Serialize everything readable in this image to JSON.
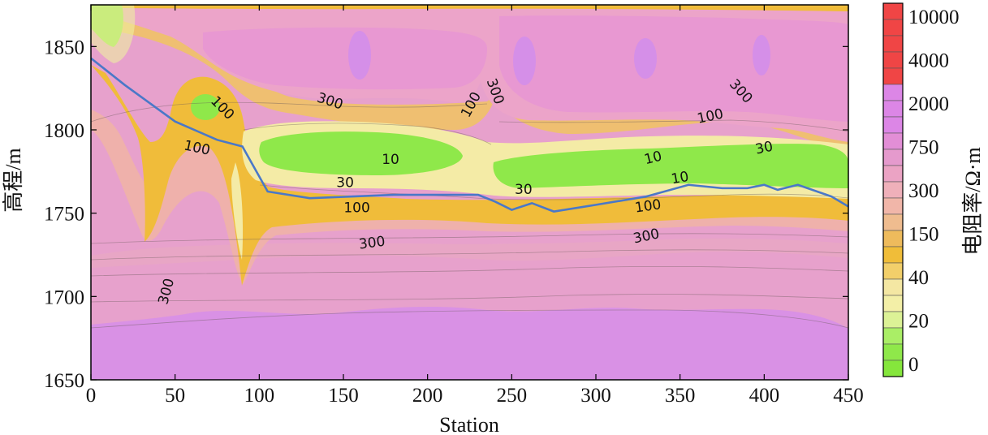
{
  "chart_data": {
    "type": "heatmap",
    "xlabel": "Station",
    "ylabel": "高程/m",
    "xlim": [
      0,
      450
    ],
    "ylim": [
      1650,
      1875
    ],
    "x_ticks": [
      "0",
      "50",
      "100",
      "150",
      "200",
      "250",
      "300",
      "350",
      "400",
      "450"
    ],
    "y_ticks": [
      "1650",
      "1700",
      "1750",
      "1800",
      "1850"
    ],
    "colorbar": {
      "title": "电阻率/Ω·m",
      "tick_labels": [
        "10000",
        "4000",
        "2000",
        "750",
        "300",
        "150",
        "40",
        "20",
        "0"
      ],
      "colors": [
        "#f04545",
        "#f04545",
        "#f04545",
        "#f04545",
        "#f04545",
        "#dc86e6",
        "#dc86e6",
        "#dc86e6",
        "#e28ed6",
        "#e59acd",
        "#eba3c4",
        "#efb0ba",
        "#f1b6a9",
        "#efbc8f",
        "#eebb5c",
        "#f0bd39",
        "#f2cf6a",
        "#f4e7a3",
        "#f3efa7",
        "#dcf296",
        "#aaee66",
        "#8fe84a",
        "#85e63c"
      ]
    },
    "series": [
      {
        "name": "",
        "x": [
          0,
          20,
          50,
          75,
          90,
          105,
          130,
          180,
          230,
          240,
          250,
          262,
          275,
          300,
          330,
          355,
          375,
          390,
          400,
          408,
          420,
          440,
          450
        ],
        "y": [
          1843,
          1827,
          1805,
          1794,
          1790,
          1763,
          1759,
          1761,
          1761,
          1757,
          1752,
          1756,
          1751,
          1755,
          1760,
          1767,
          1765,
          1765,
          1767,
          1764,
          1767,
          1760,
          1754
        ],
        "color": "#4a78c8"
      }
    ],
    "contour_labels": [
      {
        "text": "100",
        "x": 78,
        "y": 1813,
        "angle": 45
      },
      {
        "text": "100",
        "x": 63,
        "y": 1789,
        "angle": 12
      },
      {
        "text": "300",
        "x": 142,
        "y": 1817,
        "angle": 18
      },
      {
        "text": "100",
        "x": 226,
        "y": 1815,
        "angle": -62
      },
      {
        "text": "300",
        "x": 240,
        "y": 1823,
        "angle": 70
      },
      {
        "text": "300",
        "x": 386,
        "y": 1823,
        "angle": 48
      },
      {
        "text": "100",
        "x": 368,
        "y": 1808,
        "angle": -12
      },
      {
        "text": "10",
        "x": 178,
        "y": 1782,
        "angle": 0
      },
      {
        "text": "10",
        "x": 334,
        "y": 1783,
        "angle": -14
      },
      {
        "text": "10",
        "x": 350,
        "y": 1771,
        "angle": -10
      },
      {
        "text": "30",
        "x": 400,
        "y": 1789,
        "angle": -12
      },
      {
        "text": "30",
        "x": 151,
        "y": 1768,
        "angle": 0
      },
      {
        "text": "30",
        "x": 257,
        "y": 1764,
        "angle": 0
      },
      {
        "text": "100",
        "x": 158,
        "y": 1753,
        "angle": 0
      },
      {
        "text": "100",
        "x": 331,
        "y": 1754,
        "angle": -8
      },
      {
        "text": "300",
        "x": 167,
        "y": 1732,
        "angle": -7
      },
      {
        "text": "300",
        "x": 330,
        "y": 1736,
        "angle": -12
      },
      {
        "text": "300",
        "x": 45,
        "y": 1703,
        "angle": -75
      }
    ],
    "grid": false
  }
}
